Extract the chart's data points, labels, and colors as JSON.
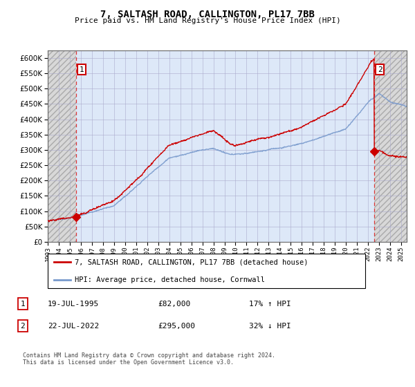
{
  "title": "7, SALTASH ROAD, CALLINGTON, PL17 7BB",
  "subtitle": "Price paid vs. HM Land Registry's House Price Index (HPI)",
  "legend_label_red": "7, SALTASH ROAD, CALLINGTON, PL17 7BB (detached house)",
  "legend_label_blue": "HPI: Average price, detached house, Cornwall",
  "annotation1_label": "1",
  "annotation1_date": "19-JUL-1995",
  "annotation1_price": "£82,000",
  "annotation1_hpi": "17% ↑ HPI",
  "annotation2_label": "2",
  "annotation2_date": "22-JUL-2022",
  "annotation2_price": "£295,000",
  "annotation2_hpi": "32% ↓ HPI",
  "footer": "Contains HM Land Registry data © Crown copyright and database right 2024.\nThis data is licensed under the Open Government Licence v3.0.",
  "ylim": [
    0,
    625000
  ],
  "yticks": [
    0,
    50000,
    100000,
    150000,
    200000,
    250000,
    300000,
    350000,
    400000,
    450000,
    500000,
    550000,
    600000
  ],
  "bg_plot": "#dde8f8",
  "bg_hatch_color": "#d8d8d8",
  "red_line_color": "#cc0000",
  "blue_line_color": "#7799cc",
  "point1_x": 1995.54,
  "point1_y": 82000,
  "point2_x": 2022.55,
  "point2_y": 295000,
  "vline1_x": 1995.54,
  "vline2_x": 2022.55,
  "xmin": 1993.0,
  "xmax": 2025.5
}
